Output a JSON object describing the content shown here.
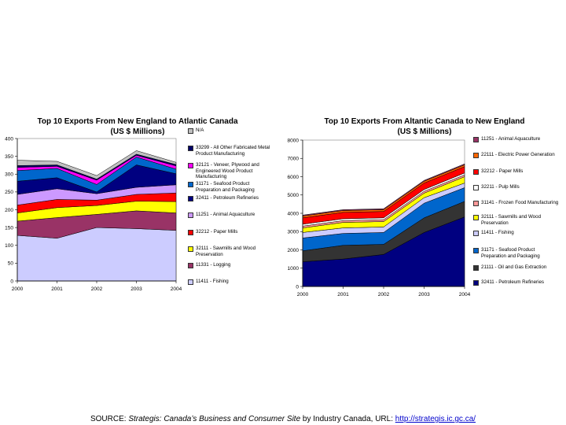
{
  "chart_data": [
    {
      "type": "area",
      "stacked": true,
      "title": "Top 10 Exports From New England to Atlantic Canada",
      "subtitle": "(US $ Millions)",
      "x": [
        "2000",
        "2001",
        "2002",
        "2003",
        "2004"
      ],
      "ylim": [
        0,
        400
      ],
      "yticks": [
        0,
        50,
        100,
        150,
        200,
        250,
        300,
        350,
        400
      ],
      "legend_position": "right",
      "series": [
        {
          "name": "11411 - Fishing",
          "color": "#ccccff",
          "values": [
            128,
            120,
            150,
            147,
            142
          ]
        },
        {
          "name": "11331 - Logging",
          "color": "#993366",
          "values": [
            40,
            58,
            37,
            50,
            49
          ]
        },
        {
          "name": "32111 - Sawmills and Wood Preservation",
          "color": "#ffff00",
          "values": [
            23,
            28,
            25,
            27,
            32
          ]
        },
        {
          "name": "32212 - Paper Mills",
          "color": "#ff0000",
          "values": [
            22,
            23,
            15,
            19,
            24
          ]
        },
        {
          "name": "11251 - Animal Aquaculture",
          "color": "#cc99ff",
          "values": [
            30,
            30,
            18,
            20,
            23
          ]
        },
        {
          "name": "32411 - Petroleum Refineries",
          "color": "#000080",
          "values": [
            37,
            31,
            5,
            63,
            31
          ]
        },
        {
          "name": "31171 - Seafood Product Preparation and Packaging",
          "color": "#0066cc",
          "values": [
            30,
            26,
            21,
            22,
            13
          ]
        },
        {
          "name": "32121 - Veneer, Plywood and Engineered Wood Product Manufacturing",
          "color": "#ff00ff",
          "values": [
            9,
            6,
            12,
            5,
            9
          ]
        },
        {
          "name": "33299 - All Other Fabricated Metal Product Manufacturing",
          "color": "#000066",
          "values": [
            5,
            4,
            3,
            3,
            4
          ]
        },
        {
          "name": "N/A",
          "color": "#c0c0c0",
          "values": [
            15,
            10,
            10,
            10,
            6
          ]
        }
      ]
    },
    {
      "type": "area",
      "stacked": true,
      "title": "Top 10 Exports From Altantic Canada to New England",
      "subtitle": "(US $ Millions)",
      "x": [
        "2000",
        "2001",
        "2002",
        "2003",
        "2004"
      ],
      "ylim": [
        0,
        8000
      ],
      "yticks": [
        0,
        1000,
        2000,
        3000,
        4000,
        5000,
        6000,
        7000,
        8000
      ],
      "legend_position": "right",
      "series": [
        {
          "name": "32411 - Petroleum Refineries",
          "color": "#000080",
          "values": [
            1350,
            1500,
            1750,
            2950,
            3800
          ]
        },
        {
          "name": "21111 - Oil and Gas Extraction",
          "color": "#333333",
          "values": [
            600,
            750,
            550,
            800,
            850
          ]
        },
        {
          "name": "31171 - Seafood Product Preparation and Packaging",
          "color": "#0066cc",
          "values": [
            700,
            650,
            650,
            800,
            750
          ]
        },
        {
          "name": "11411 - Fishing",
          "color": "#ccccff",
          "values": [
            300,
            300,
            300,
            300,
            250
          ]
        },
        {
          "name": "32111 - Sawmills and Wood Preservation",
          "color": "#ffff00",
          "values": [
            250,
            300,
            300,
            250,
            350
          ]
        },
        {
          "name": "31141 - Frozen Food Manufacturing",
          "color": "#ff9999",
          "values": [
            100,
            100,
            100,
            100,
            100
          ]
        },
        {
          "name": "32211 - Pulp Mills",
          "color": "#ffffff",
          "values": [
            100,
            100,
            100,
            100,
            100
          ]
        },
        {
          "name": "32212 - Paper Mills",
          "color": "#ff0000",
          "values": [
            350,
            350,
            350,
            350,
            350
          ]
        },
        {
          "name": "22111 - Electric Power Generation",
          "color": "#ff6600",
          "values": [
            100,
            100,
            100,
            100,
            100
          ]
        },
        {
          "name": "11251 - Animal Aquaculture",
          "color": "#993366",
          "values": [
            50,
            50,
            50,
            50,
            50
          ]
        }
      ]
    }
  ],
  "source": {
    "prefix": "SOURCE: ",
    "site": "Strategis: Canada’s Business and Consumer Site",
    "middle": " by Industry Canada, URL: ",
    "url": "http://strategis.ic.gc.ca/"
  }
}
